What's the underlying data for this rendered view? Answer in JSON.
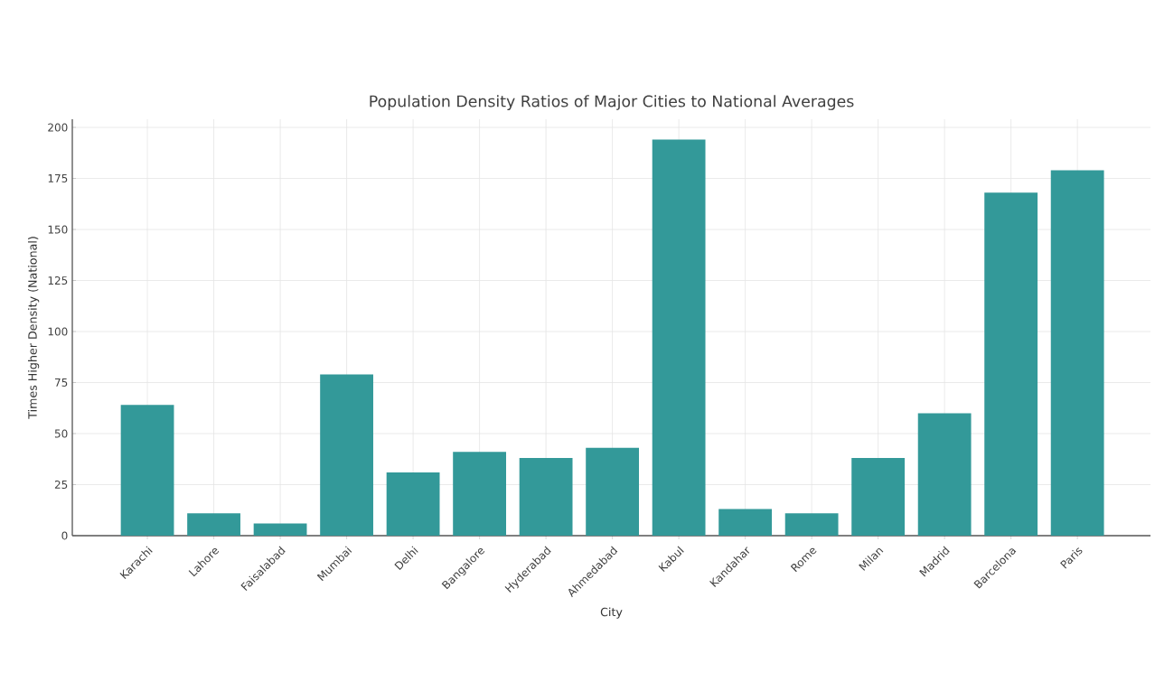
{
  "chart_data": {
    "type": "bar",
    "title": "Population Density Ratios of Major Cities to National Averages",
    "xlabel": "City",
    "ylabel": "Times Higher Density (National)",
    "categories": [
      "Karachi",
      "Lahore",
      "Faisalabad",
      "Mumbai",
      "Delhi",
      "Bangalore",
      "Hyderabad",
      "Ahmedabad",
      "Kabul",
      "Kandahar",
      "Rome",
      "Milan",
      "Madrid",
      "Barcelona",
      "Paris"
    ],
    "values": [
      64,
      11,
      6,
      79,
      31,
      41,
      38,
      43,
      194,
      13,
      11,
      38,
      60,
      168,
      179
    ],
    "color": "#339999",
    "ylim": [
      0,
      204
    ],
    "yticks": [
      0,
      25,
      50,
      75,
      100,
      125,
      150,
      175,
      200
    ],
    "grid": true
  }
}
